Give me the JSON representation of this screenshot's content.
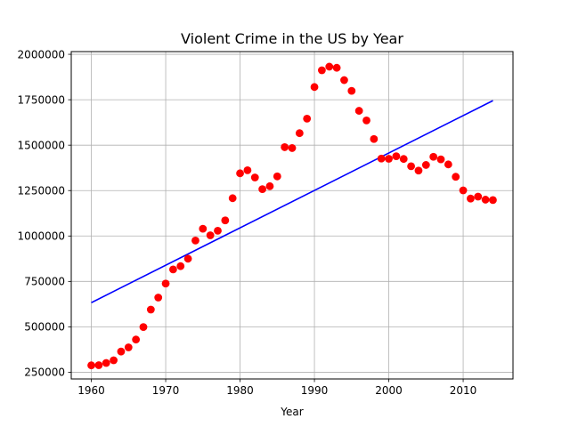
{
  "chart_data": {
    "type": "scatter",
    "title": "Violent Crime in the US by Year",
    "xlabel": "Year",
    "ylabel": "",
    "xlim": [
      1957.3,
      2016.7
    ],
    "ylim": [
      213000,
      2015000
    ],
    "xticks": [
      1960,
      1970,
      1980,
      1990,
      2000,
      2010
    ],
    "yticks": [
      250000,
      500000,
      750000,
      1000000,
      1250000,
      1500000,
      1750000,
      2000000
    ],
    "grid": true,
    "series": [
      {
        "kind": "scatter",
        "color": "#ff0000",
        "points": [
          [
            1960,
            288000
          ],
          [
            1961,
            289000
          ],
          [
            1962,
            301000
          ],
          [
            1963,
            316000
          ],
          [
            1964,
            364000
          ],
          [
            1965,
            387000
          ],
          [
            1966,
            430000
          ],
          [
            1967,
            499000
          ],
          [
            1968,
            595000
          ],
          [
            1969,
            661000
          ],
          [
            1970,
            738000
          ],
          [
            1971,
            816000
          ],
          [
            1972,
            834000
          ],
          [
            1973,
            875000
          ],
          [
            1974,
            975000
          ],
          [
            1975,
            1040000
          ],
          [
            1976,
            1004000
          ],
          [
            1977,
            1029000
          ],
          [
            1978,
            1086000
          ],
          [
            1979,
            1208000
          ],
          [
            1980,
            1345000
          ],
          [
            1981,
            1362000
          ],
          [
            1982,
            1322000
          ],
          [
            1983,
            1258000
          ],
          [
            1984,
            1274000
          ],
          [
            1985,
            1328000
          ],
          [
            1986,
            1489000
          ],
          [
            1987,
            1484000
          ],
          [
            1988,
            1566000
          ],
          [
            1989,
            1646000
          ],
          [
            1990,
            1820000
          ],
          [
            1991,
            1912000
          ],
          [
            1992,
            1932000
          ],
          [
            1993,
            1926000
          ],
          [
            1994,
            1858000
          ],
          [
            1995,
            1799000
          ],
          [
            1996,
            1689000
          ],
          [
            1997,
            1636000
          ],
          [
            1998,
            1534000
          ],
          [
            1999,
            1426000
          ],
          [
            2000,
            1425000
          ],
          [
            2001,
            1439000
          ],
          [
            2002,
            1424000
          ],
          [
            2003,
            1384000
          ],
          [
            2004,
            1360000
          ],
          [
            2005,
            1391000
          ],
          [
            2006,
            1436000
          ],
          [
            2007,
            1422000
          ],
          [
            2008,
            1394000
          ],
          [
            2009,
            1326000
          ],
          [
            2010,
            1251000
          ],
          [
            2011,
            1206000
          ],
          [
            2012,
            1217000
          ],
          [
            2013,
            1200000
          ],
          [
            2014,
            1198000
          ]
        ]
      },
      {
        "kind": "line",
        "color": "#0000ff",
        "points": [
          [
            1960,
            633000
          ],
          [
            2014,
            1745000
          ]
        ]
      }
    ]
  }
}
